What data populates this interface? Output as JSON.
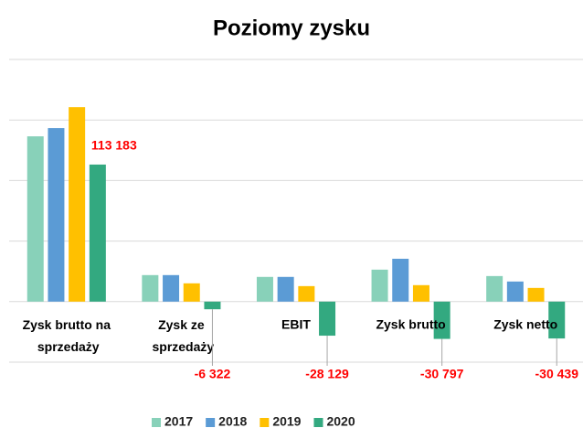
{
  "chart_data": {
    "type": "bar",
    "title": "Poziomy zysku",
    "categories": [
      "Zysk brutto na sprzedaży",
      "Zysk ze sprzedaży",
      "EBIT",
      "Zysk brutto",
      "Zysk netto"
    ],
    "series": [
      {
        "name": "2017",
        "color": "#88d1b9",
        "values": [
          136500,
          21900,
          20400,
          26400,
          21100
        ]
      },
      {
        "name": "2018",
        "color": "#5b9bd5",
        "values": [
          143300,
          21900,
          20400,
          35400,
          16600
        ]
      },
      {
        "name": "2019",
        "color": "#ffc000",
        "values": [
          160600,
          15100,
          12800,
          13600,
          11300
        ]
      },
      {
        "name": "2020",
        "color": "#33a980",
        "values": [
          113183,
          -6322,
          -28129,
          -30797,
          -30439
        ],
        "value_labels": [
          "113 183",
          "-6 322",
          "-28 129",
          "-30 797",
          "-30 439"
        ]
      }
    ],
    "ylim": [
      -50000,
      200000
    ],
    "yticks": [
      -50000,
      0,
      50000,
      100000,
      150000,
      200000
    ],
    "grid": true,
    "legend": "bottom"
  }
}
